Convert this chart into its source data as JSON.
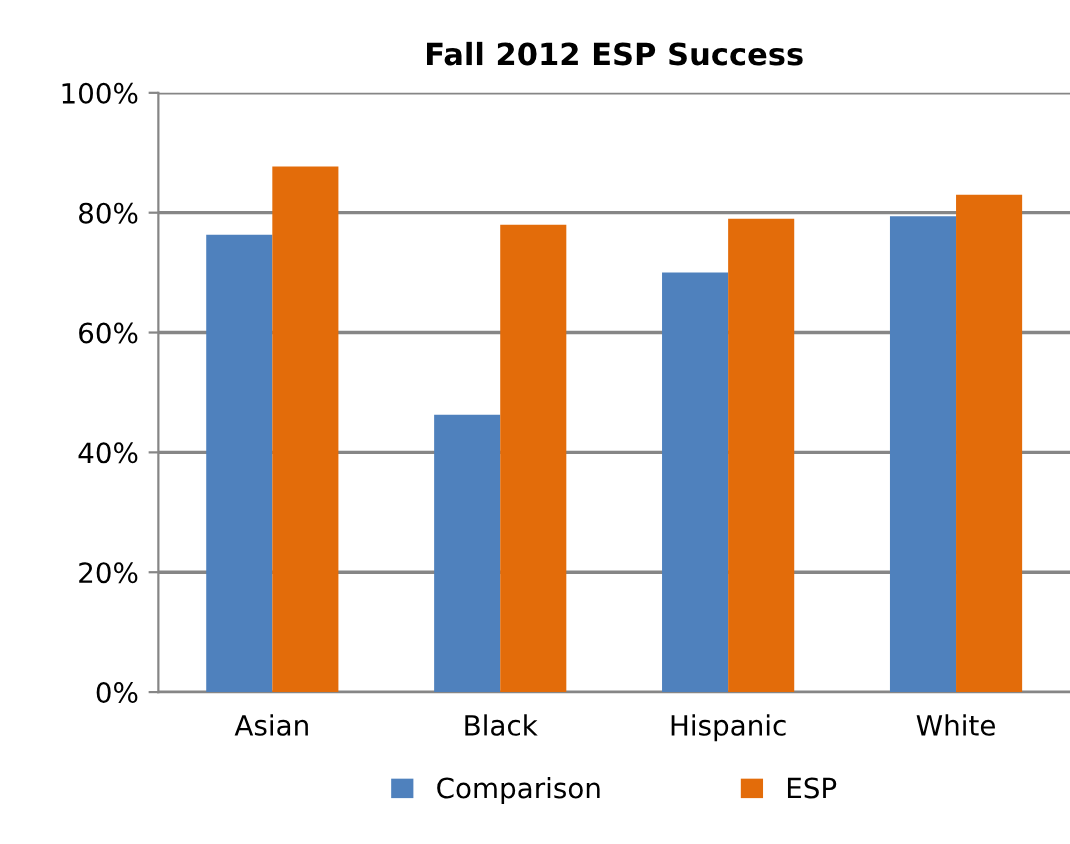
{
  "chart_data": {
    "type": "bar",
    "title": "Fall 2012 ESP Success",
    "categories": [
      "Asian",
      "Black",
      "Hispanic",
      "White"
    ],
    "series": [
      {
        "name": "Comparison",
        "color": "#4f81bd",
        "values": [
          76.3,
          46.3,
          70.0,
          79.4
        ]
      },
      {
        "name": "ESP",
        "color": "#e36c0a",
        "values": [
          87.7,
          78.0,
          79.0,
          83.0
        ]
      }
    ],
    "ylim": [
      0,
      100
    ],
    "yticks": [
      {
        "value": 0,
        "label": "0%"
      },
      {
        "value": 20,
        "label": "20%"
      },
      {
        "value": 40,
        "label": "40%"
      },
      {
        "value": 60,
        "label": "60%"
      },
      {
        "value": 80,
        "label": "80%"
      },
      {
        "value": 100,
        "label": "100%"
      }
    ],
    "grid": "y",
    "legend": "bottom"
  }
}
